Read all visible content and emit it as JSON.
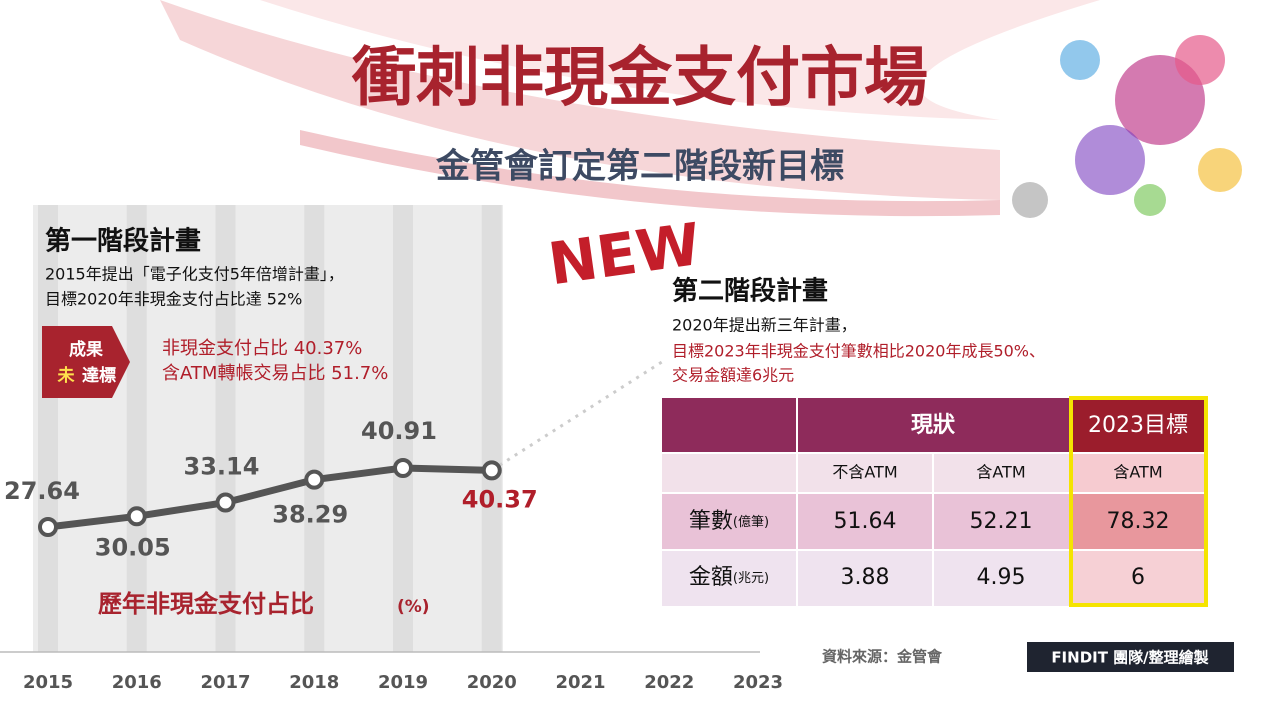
{
  "header": {
    "title": "衝刺非現金支付市場",
    "subtitle": "金管會訂定第二階段新目標",
    "badge": "NEW"
  },
  "phase1": {
    "title": "第一階段計畫",
    "lines": [
      "2015年提出「電子化支付5年倍增計畫」，",
      "目標2020年非現金支付占比達 52%"
    ],
    "badge": [
      "成果",
      "未",
      "達標"
    ],
    "results": [
      "非現金支付占比 40.37%",
      "含ATM轉帳交易占比 51.7%"
    ]
  },
  "chart_data": {
    "type": "line",
    "title": "歷年非現金支付占比",
    "unit": "(%)",
    "categories": [
      "2015",
      "2016",
      "2017",
      "2018",
      "2019",
      "2020",
      "2021",
      "2022",
      "2023"
    ],
    "values": [
      27.64,
      30.05,
      33.14,
      38.29,
      40.91,
      40.37,
      null,
      null,
      null
    ],
    "color": "#555555"
  },
  "phase2": {
    "title": "第二階段計畫",
    "lines": [
      "2020年提出新三年計畫，",
      "目標2023年非現金支付筆數相比2020年成長50%、",
      "交易金額達6兆元"
    ]
  },
  "table": {
    "header": [
      "現狀",
      "2023目標"
    ],
    "subheader": [
      "不含ATM",
      "含ATM",
      "含ATM"
    ],
    "rows": [
      {
        "label": "筆數",
        "unit": "(億筆)",
        "values": [
          51.64,
          52.21,
          78.32
        ]
      },
      {
        "label": "金額",
        "unit": "(兆元)",
        "values": [
          3.88,
          4.95,
          6
        ]
      }
    ]
  },
  "footer": {
    "source": "資料來源：金管會",
    "credit": "FINDIT 團隊/整理繪製"
  }
}
